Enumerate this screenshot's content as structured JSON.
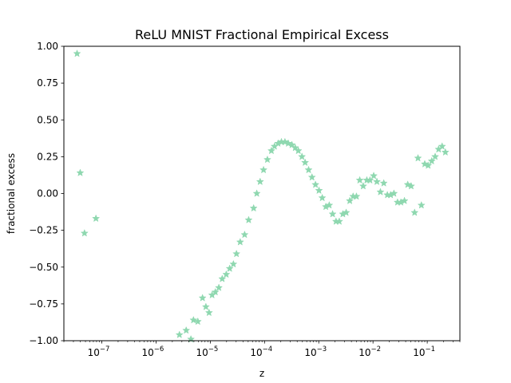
{
  "chart_data": {
    "type": "scatter",
    "title": "ReLU MNIST Fractional Empirical Excess",
    "xlabel": "z",
    "ylabel": "fractional excess",
    "xscale": "log",
    "xlim": [
      2e-08,
      0.4
    ],
    "ylim": [
      -1.0,
      1.0
    ],
    "grid": false,
    "marker": "star",
    "marker_color": "#8fd8b0",
    "x_ticks": [
      {
        "value": 1e-07,
        "base": "10",
        "exp": "−7"
      },
      {
        "value": 1e-06,
        "base": "10",
        "exp": "−6"
      },
      {
        "value": 1e-05,
        "base": "10",
        "exp": "−5"
      },
      {
        "value": 0.0001,
        "base": "10",
        "exp": "−4"
      },
      {
        "value": 0.001,
        "base": "10",
        "exp": "−3"
      },
      {
        "value": 0.01,
        "base": "10",
        "exp": "−2"
      },
      {
        "value": 0.1,
        "base": "10",
        "exp": "−1"
      }
    ],
    "y_ticks": [
      {
        "value": -1.0,
        "label": "−1.00"
      },
      {
        "value": -0.75,
        "label": "−0.75"
      },
      {
        "value": -0.5,
        "label": "−0.50"
      },
      {
        "value": -0.25,
        "label": "−0.25"
      },
      {
        "value": 0.0,
        "label": "0.00"
      },
      {
        "value": 0.25,
        "label": "0.25"
      },
      {
        "value": 0.5,
        "label": "0.50"
      },
      {
        "value": 0.75,
        "label": "0.75"
      },
      {
        "value": 1.0,
        "label": "1.00"
      }
    ],
    "x": [
      3.5e-08,
      4e-08,
      4.8e-08,
      7.8e-08,
      2.7e-06,
      3.6e-06,
      4.4e-06,
      4.9e-06,
      5.9e-06,
      7.2e-06,
      8.3e-06,
      9.5e-06,
      1.08e-05,
      1.24e-05,
      1.44e-05,
      1.66e-05,
      1.97e-05,
      2.28e-05,
      2.67e-05,
      3.04e-05,
      3.56e-05,
      4.3e-05,
      5.1e-05,
      6.3e-05,
      7.2e-05,
      8.3e-05,
      9.6e-05,
      0.000113,
      0.000134,
      0.000153,
      0.000178,
      0.000205,
      0.000238,
      0.000274,
      0.00032,
      0.000368,
      0.00042,
      0.00049,
      0.00056,
      0.00065,
      0.00075,
      0.00087,
      0.00101,
      0.00116,
      0.00135,
      0.00156,
      0.0018,
      0.00208,
      0.00239,
      0.00278,
      0.0032,
      0.00373,
      0.0043,
      0.00495,
      0.0057,
      0.0066,
      0.0077,
      0.0088,
      0.0103,
      0.0118,
      0.0137,
      0.0158,
      0.0184,
      0.0211,
      0.0243,
      0.0283,
      0.0327,
      0.038,
      0.0437,
      0.0505,
      0.0585,
      0.0675,
      0.078,
      0.09,
      0.104,
      0.121,
      0.14,
      0.162,
      0.188,
      0.216
    ],
    "y": [
      0.95,
      0.14,
      -0.27,
      -0.17,
      -0.96,
      -0.93,
      -0.99,
      -0.86,
      -0.87,
      -0.71,
      -0.77,
      -0.81,
      -0.69,
      -0.67,
      -0.64,
      -0.58,
      -0.55,
      -0.51,
      -0.48,
      -0.41,
      -0.33,
      -0.28,
      -0.18,
      -0.1,
      0.0,
      0.08,
      0.16,
      0.23,
      0.29,
      0.32,
      0.34,
      0.35,
      0.35,
      0.34,
      0.33,
      0.31,
      0.29,
      0.25,
      0.21,
      0.16,
      0.11,
      0.06,
      0.02,
      -0.03,
      -0.09,
      -0.08,
      -0.14,
      -0.19,
      -0.19,
      -0.14,
      -0.13,
      -0.05,
      -0.02,
      -0.02,
      0.09,
      0.05,
      0.09,
      0.09,
      0.12,
      0.08,
      0.01,
      0.07,
      -0.01,
      -0.01,
      0.0,
      -0.06,
      -0.06,
      -0.05,
      0.06,
      0.05,
      -0.13,
      0.24,
      -0.08,
      0.2,
      0.19,
      0.22,
      0.25,
      0.3,
      0.32,
      0.28
    ]
  }
}
